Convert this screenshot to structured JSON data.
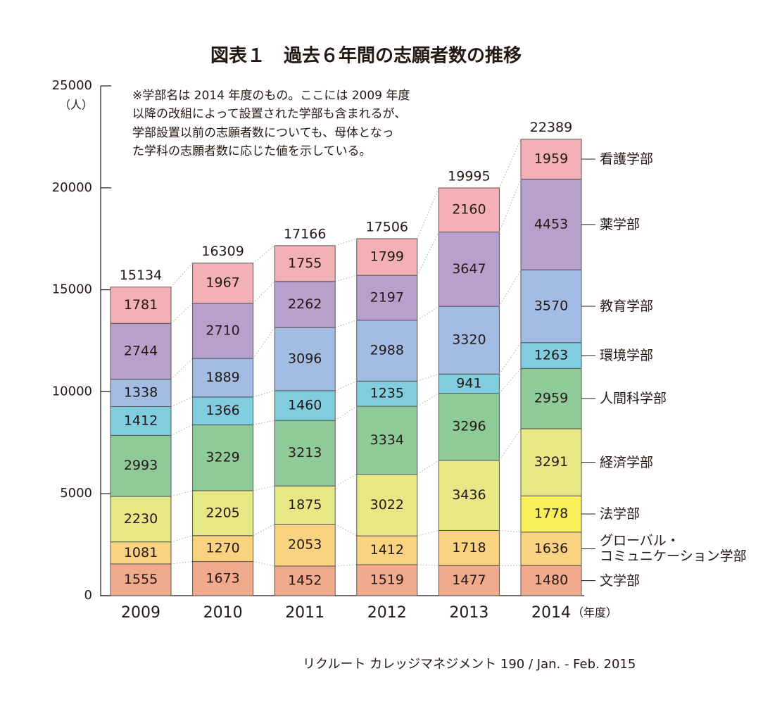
{
  "chart_data": {
    "type": "stacked_bar",
    "title": "図表１　過去６年間の志願者数の推移",
    "y_unit": "（人）",
    "x_unit": "（年度）",
    "note": [
      "※学部名は 2014 年度のもの。ここには 2009 年度",
      "以降の改組によって設置された学部も含まれるが、",
      "学部設置以前の志願者数についても、母体となっ",
      "た学科の志願者数に応じた値を示している。"
    ],
    "source": "リクルート カレッジマネジメント 190 / Jan. - Feb. 2015",
    "categories": [
      "2009",
      "2010",
      "2011",
      "2012",
      "2013",
      "2014"
    ],
    "ylim": [
      0,
      25000
    ],
    "yticks": [
      0,
      5000,
      10000,
      15000,
      20000,
      25000
    ],
    "totals": [
      15134,
      16309,
      17166,
      17506,
      19995,
      22389
    ],
    "series": [
      {
        "name": "文学部",
        "color": "#f2aa8c",
        "values": [
          1555,
          1673,
          1452,
          1519,
          1477,
          1480
        ]
      },
      {
        "name": "グローバル・\nコミュニケーション学部",
        "color": "#f9d380",
        "values": [
          1081,
          1270,
          2053,
          1412,
          1718,
          1636
        ]
      },
      {
        "name": "法学部",
        "color": "#f9f05a",
        "values": [
          null,
          null,
          null,
          null,
          null,
          1778
        ]
      },
      {
        "name": "経済学部",
        "color": "#e6e886",
        "values": [
          2230,
          2205,
          1875,
          3022,
          3436,
          3291
        ]
      },
      {
        "name": "人間科学部",
        "color": "#8fcb98",
        "values": [
          2993,
          3229,
          3213,
          3334,
          3296,
          2959
        ]
      },
      {
        "name": "環境学部",
        "color": "#80cde0",
        "values": [
          1412,
          1366,
          1460,
          1235,
          941,
          1263
        ]
      },
      {
        "name": "教育学部",
        "color": "#a3bce3",
        "values": [
          1338,
          1889,
          3096,
          2988,
          3320,
          3570
        ]
      },
      {
        "name": "薬学部",
        "color": "#b8a0cc",
        "values": [
          2744,
          2710,
          2262,
          2197,
          3647,
          4453
        ]
      },
      {
        "name": "看護学部",
        "color": "#f3b1b6",
        "values": [
          1781,
          1967,
          1755,
          1799,
          2160,
          1959
        ]
      }
    ]
  }
}
